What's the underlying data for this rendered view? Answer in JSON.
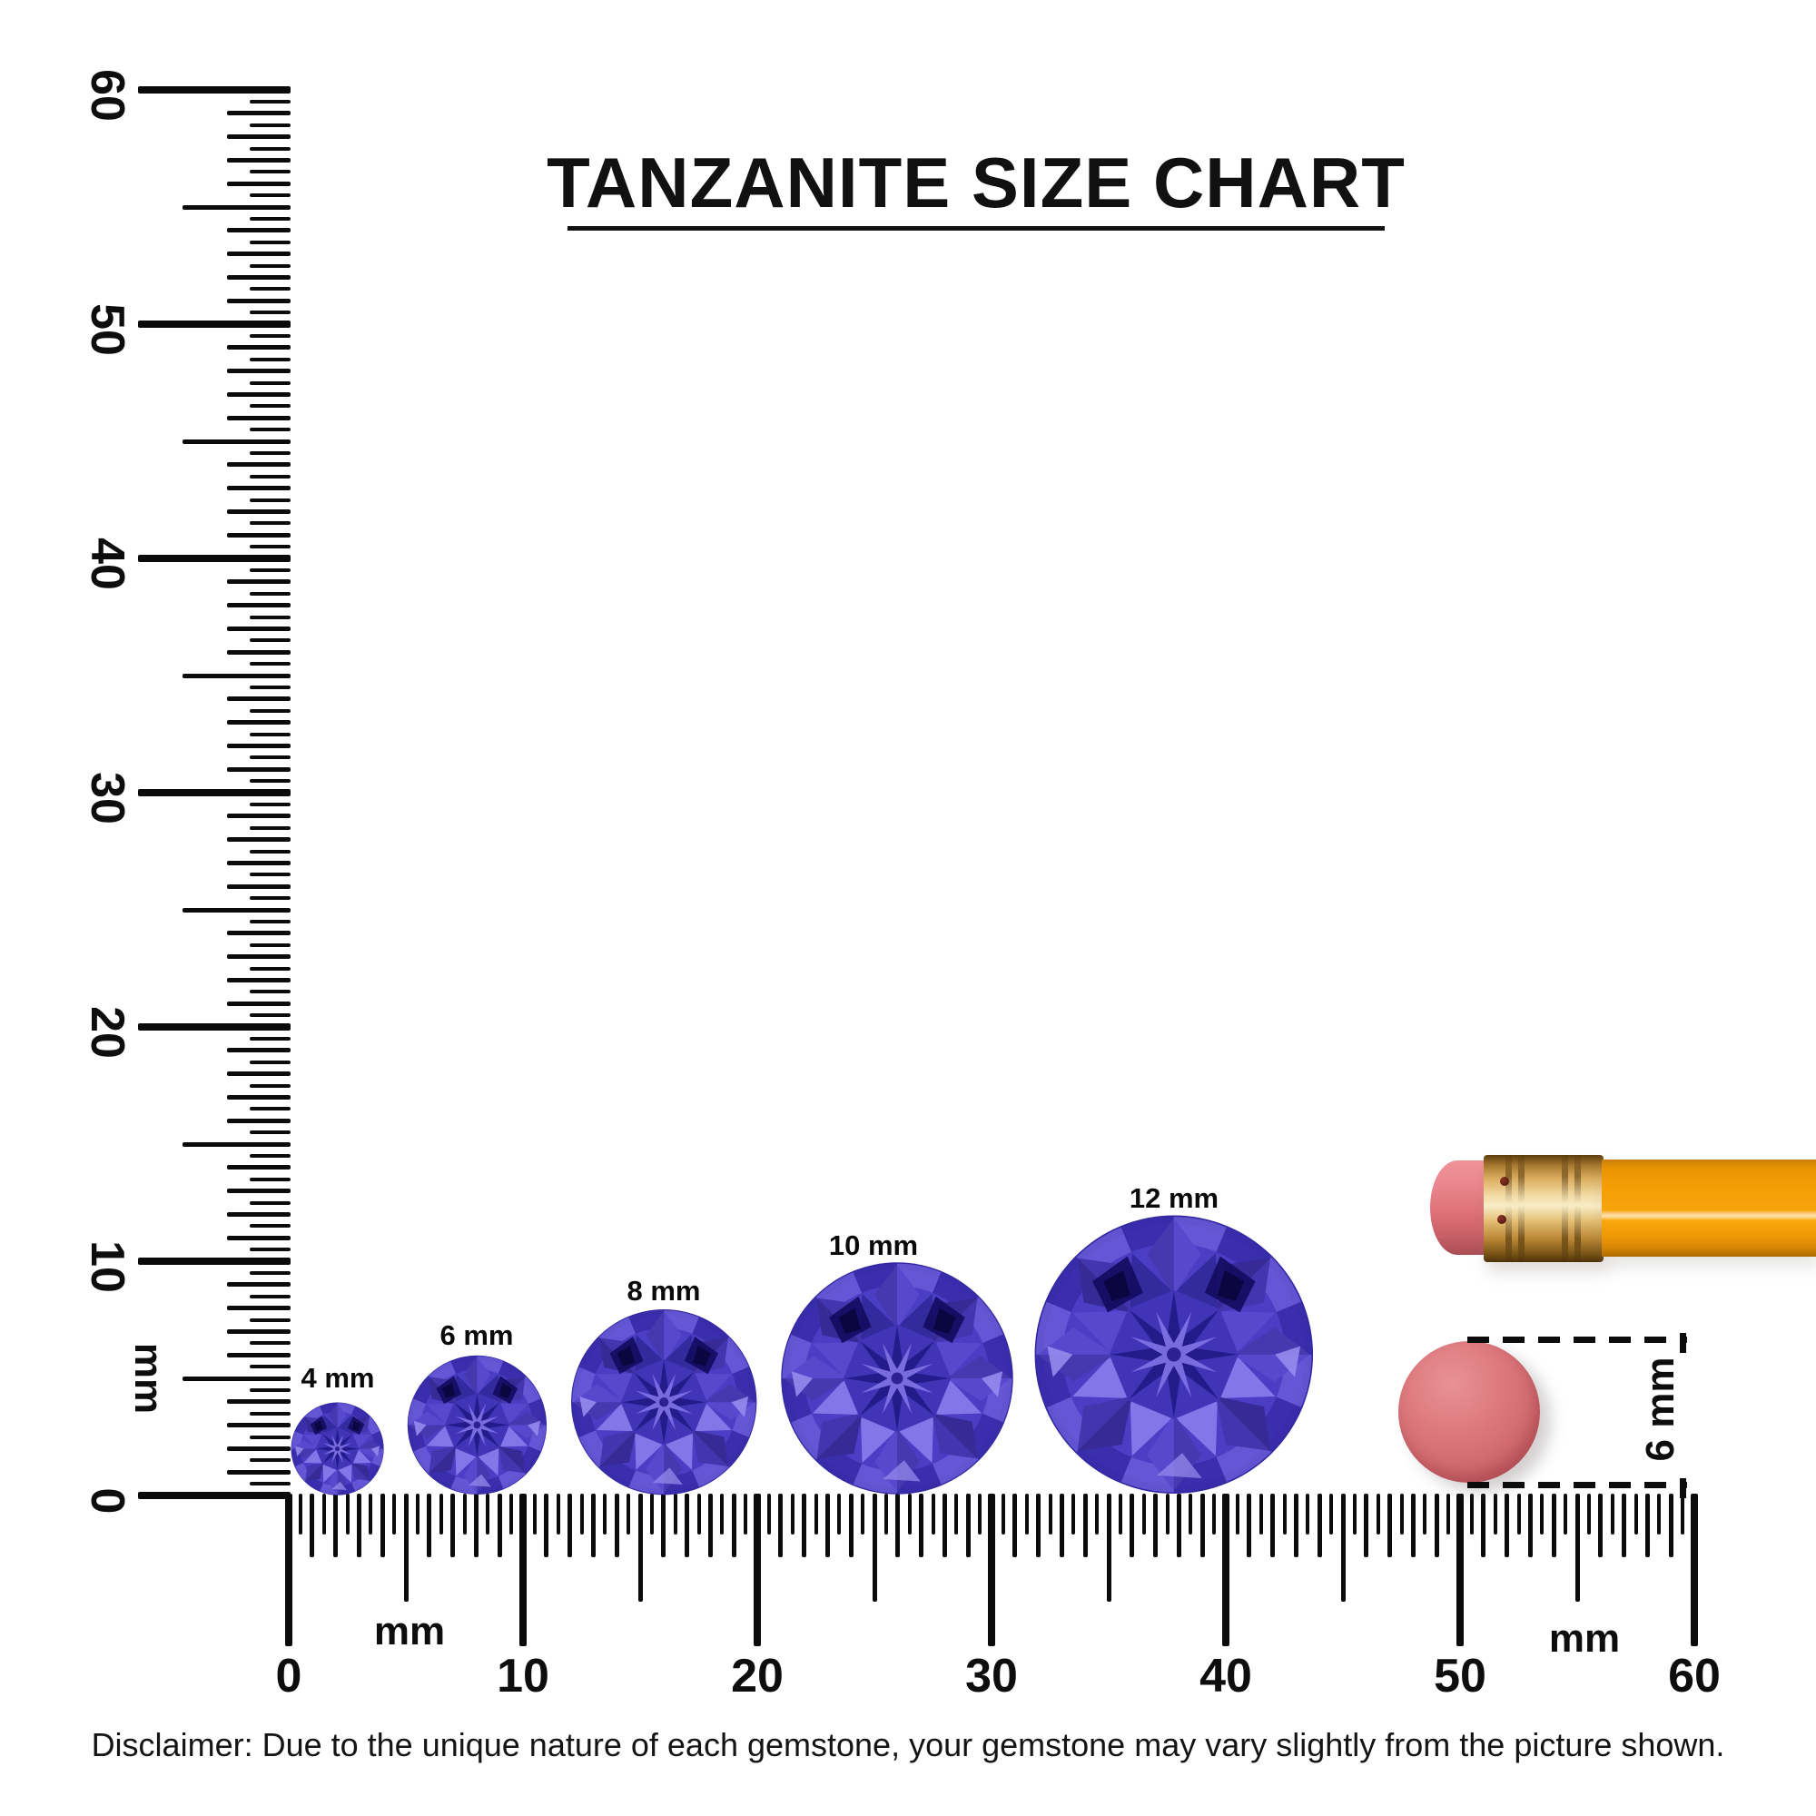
{
  "title": {
    "text": "TANZANITE SIZE CHART"
  },
  "rulers": {
    "vertical": {
      "unit_label": "mm",
      "major_labels": [
        "0",
        "10",
        "20",
        "30",
        "40",
        "50",
        "60"
      ]
    },
    "horizontal": {
      "unit_label_left": "mm",
      "unit_label_right": "mm",
      "major_labels": [
        "0",
        "10",
        "20",
        "30",
        "40",
        "50",
        "60"
      ]
    },
    "range_mm": [
      0,
      60
    ],
    "unit": "mm"
  },
  "gems": [
    {
      "label": "4 mm",
      "size_mm": 4
    },
    {
      "label": "6 mm",
      "size_mm": 6
    },
    {
      "label": "8 mm",
      "size_mm": 8
    },
    {
      "label": "10 mm",
      "size_mm": 10
    },
    {
      "label": "12 mm",
      "size_mm": 12
    }
  ],
  "scale_reference": {
    "eraser_label": "6 mm",
    "eraser_size_mm": 6
  },
  "disclaimer": "Disclaimer: Due to the unique nature of each gemstone, your gemstone may vary slightly from the picture shown.",
  "colors": {
    "ink": "#0b0b0b",
    "gem_base": "#4b3dc4",
    "gem_rim": "#33289f",
    "gem_girdle_light": "#6759d6",
    "gem_girdle_dark": "#382cab",
    "gem_mid": "#5748cd",
    "gem_mid2": "#4335ad",
    "gem_light": "#8376e8",
    "gem_lighter": "#9a8ff0",
    "gem_dark": "#332a9e",
    "gem_table": "#4134b6",
    "gem_core_dark": "#241b8a",
    "gem_core_light": "#7f72e6",
    "gem_darkest": "#140c60",
    "eraser_pink": "#db6f76",
    "disc_pink": "#d96d72",
    "ferrule_gold": "#e8c176",
    "pencil_orange": "#f59e06"
  }
}
